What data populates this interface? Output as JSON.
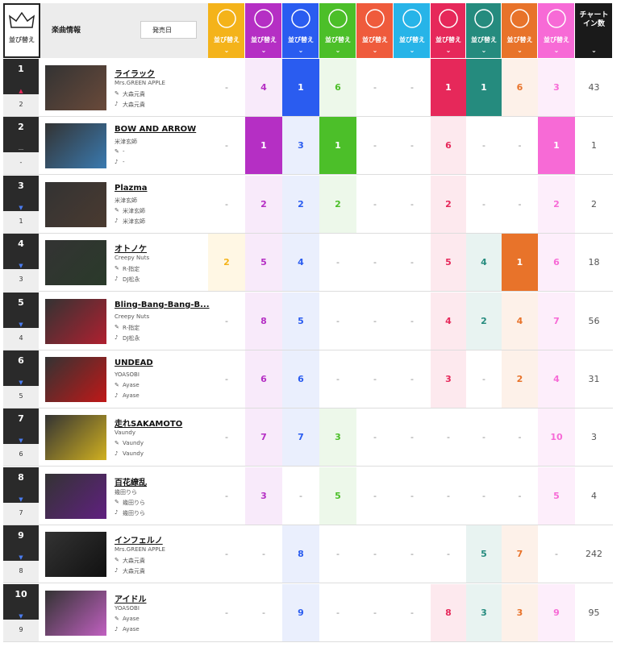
{
  "header": {
    "sort_label": "並び替え",
    "song_info": "楽曲情報",
    "release_date": "発売日",
    "chart_in": "チャートイン数"
  },
  "rows": [
    {
      "rank": 1,
      "prev_rank": 2,
      "title": "ライラック",
      "artist": "Mrs.GREEN APPLE",
      "lyricist": "大森元貴",
      "composer": "大森元貴",
      "metrics": [
        "-",
        4,
        1,
        6,
        "-",
        "-",
        1,
        1,
        6,
        3
      ],
      "chart_in": 43
    },
    {
      "rank": 2,
      "prev_rank": "-",
      "title": "BOW AND ARROW",
      "artist": "米津玄師",
      "lyricist": "-",
      "composer": "-",
      "metrics": [
        "-",
        1,
        3,
        1,
        "-",
        "-",
        6,
        "-",
        "-",
        1
      ],
      "chart_in": 1
    },
    {
      "rank": 3,
      "prev_rank": 1,
      "title": "Plazma",
      "artist": "米津玄師",
      "lyricist": "米津玄師",
      "composer": "米津玄師",
      "metrics": [
        "-",
        2,
        2,
        2,
        "-",
        "-",
        2,
        "-",
        "-",
        2
      ],
      "chart_in": 2
    },
    {
      "rank": 4,
      "prev_rank": 3,
      "title": "オトノケ",
      "artist": "Creepy Nuts",
      "lyricist": "R-指定",
      "composer": "DJ松永",
      "metrics": [
        2,
        5,
        4,
        "-",
        "-",
        "-",
        5,
        4,
        1,
        6
      ],
      "chart_in": 18
    },
    {
      "rank": 5,
      "prev_rank": 4,
      "title": "Bling-Bang-Bang-B...",
      "artist": "Creepy Nuts",
      "lyricist": "R-指定",
      "composer": "DJ松永",
      "metrics": [
        "-",
        8,
        5,
        "-",
        "-",
        "-",
        4,
        2,
        4,
        7
      ],
      "chart_in": 56
    },
    {
      "rank": 6,
      "prev_rank": 5,
      "title": "UNDEAD",
      "artist": "YOASOBI",
      "lyricist": "Ayase",
      "composer": "Ayase",
      "metrics": [
        "-",
        6,
        6,
        "-",
        "-",
        "-",
        3,
        "-",
        2,
        4
      ],
      "chart_in": 31
    },
    {
      "rank": 7,
      "prev_rank": 6,
      "title": "走れSAKAMOTO",
      "artist": "Vaundy",
      "lyricist": "Vaundy",
      "composer": "Vaundy",
      "metrics": [
        "-",
        7,
        7,
        3,
        "-",
        "-",
        "-",
        "-",
        "-",
        10
      ],
      "chart_in": 3
    },
    {
      "rank": 8,
      "prev_rank": 7,
      "title": "百花繚乱",
      "artist": "幾田りら",
      "lyricist": "幾田りら",
      "composer": "幾田りら",
      "metrics": [
        "-",
        3,
        "-",
        5,
        "-",
        "-",
        "-",
        "-",
        "-",
        5
      ],
      "chart_in": 4
    },
    {
      "rank": 9,
      "prev_rank": 8,
      "title": "インフェルノ",
      "artist": "Mrs.GREEN APPLE",
      "lyricist": "大森元貴",
      "composer": "大森元貴",
      "metrics": [
        "-",
        "-",
        8,
        "-",
        "-",
        "-",
        "-",
        5,
        7,
        "-"
      ],
      "chart_in": 242
    },
    {
      "rank": 10,
      "prev_rank": 9,
      "title": "アイドル",
      "artist": "YOASOBI",
      "lyricist": "Ayase",
      "composer": "Ayase",
      "metrics": [
        "-",
        "-",
        9,
        "-",
        "-",
        "-",
        8,
        3,
        3,
        9
      ],
      "chart_in": 95
    }
  ]
}
